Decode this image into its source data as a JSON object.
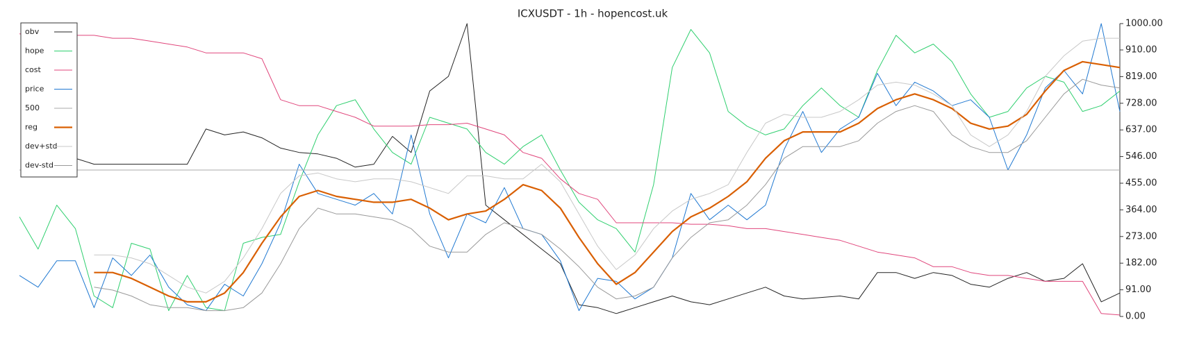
{
  "chart_data": {
    "type": "line",
    "title": "ICXUSDT - 1h - hopencost.uk",
    "ylim": [
      0,
      1000
    ],
    "yticks": [
      {
        "value": 0,
        "label": "0.00"
      },
      {
        "value": 91,
        "label": "91.00"
      },
      {
        "value": 182,
        "label": "182.00"
      },
      {
        "value": 273,
        "label": "273.00"
      },
      {
        "value": 364,
        "label": "364.00"
      },
      {
        "value": 455,
        "label": "455.00"
      },
      {
        "value": 546,
        "label": "546.00"
      },
      {
        "value": 637,
        "label": "637.00"
      },
      {
        "value": 728,
        "label": "728.00"
      },
      {
        "value": 819,
        "label": "819.00"
      },
      {
        "value": 910,
        "label": "910.00"
      },
      {
        "value": 1000,
        "label": "1000.00"
      }
    ],
    "legend": "upper left",
    "series": [
      {
        "name": "obv",
        "color": "#222222",
        "width": 1,
        "values": [
          null,
          null,
          null,
          540,
          520,
          520,
          520,
          520,
          520,
          520,
          640,
          620,
          630,
          610,
          575,
          560,
          555,
          540,
          510,
          520,
          615,
          560,
          770,
          820,
          1000,
          380,
          330,
          280,
          230,
          180,
          40,
          30,
          10,
          30,
          50,
          70,
          50,
          40,
          60,
          80,
          100,
          70,
          60,
          65,
          70,
          60,
          150,
          150,
          130,
          150,
          140,
          110,
          100,
          130,
          150,
          120,
          130,
          180,
          50,
          80
        ]
      },
      {
        "name": "hope",
        "color": "#2ecf6e",
        "width": 1,
        "values": [
          340,
          230,
          380,
          300,
          70,
          30,
          250,
          230,
          20,
          140,
          30,
          20,
          250,
          270,
          280,
          460,
          620,
          720,
          740,
          640,
          560,
          520,
          680,
          660,
          640,
          560,
          520,
          580,
          620,
          500,
          390,
          330,
          300,
          220,
          450,
          850,
          980,
          900,
          700,
          650,
          620,
          640,
          720,
          780,
          720,
          680,
          840,
          960,
          900,
          930,
          870,
          760,
          680,
          700,
          780,
          820,
          800,
          700,
          720,
          770
        ]
      },
      {
        "name": "cost",
        "color": "#e0457b",
        "width": 1,
        "values": [
          965,
          960,
          960,
          960,
          960,
          950,
          950,
          940,
          930,
          920,
          900,
          900,
          900,
          880,
          740,
          720,
          720,
          700,
          680,
          650,
          650,
          650,
          655,
          655,
          660,
          640,
          620,
          560,
          540,
          470,
          420,
          400,
          320,
          320,
          320,
          320,
          315,
          315,
          310,
          300,
          300,
          290,
          280,
          270,
          260,
          240,
          220,
          210,
          200,
          170,
          170,
          150,
          140,
          140,
          130,
          120,
          120,
          120,
          10,
          5
        ]
      },
      {
        "name": "price",
        "color": "#1f78d1",
        "width": 1,
        "values": [
          140,
          100,
          190,
          190,
          30,
          200,
          140,
          210,
          100,
          40,
          20,
          110,
          70,
          180,
          320,
          520,
          420,
          400,
          380,
          420,
          350,
          620,
          350,
          200,
          350,
          320,
          440,
          300,
          280,
          190,
          20,
          130,
          120,
          60,
          100,
          200,
          420,
          330,
          380,
          330,
          380,
          570,
          700,
          560,
          640,
          680,
          830,
          720,
          800,
          770,
          720,
          740,
          680,
          500,
          620,
          780,
          840,
          760,
          1000,
          700
        ]
      },
      {
        "name": "500",
        "color": "#aaaaaa",
        "width": 1,
        "values": [
          500,
          500,
          500,
          500,
          500,
          500,
          500,
          500,
          500,
          500,
          500,
          500,
          500,
          500,
          500,
          500,
          500,
          500,
          500,
          500,
          500,
          500,
          500,
          500,
          500,
          500,
          500,
          500,
          500,
          500,
          500,
          500,
          500,
          500,
          500,
          500,
          500,
          500,
          500,
          500,
          500,
          500,
          500,
          500,
          500,
          500,
          500,
          500,
          500,
          500,
          500,
          500,
          500,
          500,
          500,
          500,
          500,
          500,
          500,
          500
        ]
      },
      {
        "name": "reg",
        "color": "#d95f02",
        "width": 2.2,
        "values": [
          null,
          null,
          null,
          null,
          150,
          150,
          130,
          100,
          70,
          50,
          50,
          80,
          150,
          250,
          340,
          410,
          430,
          410,
          400,
          390,
          390,
          400,
          370,
          330,
          350,
          360,
          400,
          450,
          430,
          370,
          270,
          180,
          110,
          150,
          220,
          290,
          340,
          370,
          410,
          460,
          540,
          600,
          630,
          630,
          630,
          660,
          710,
          740,
          760,
          740,
          710,
          660,
          640,
          650,
          690,
          770,
          840,
          870,
          860,
          850
        ]
      },
      {
        "name": "dev+std",
        "color": "#c8c8c8",
        "width": 1,
        "values": [
          null,
          null,
          null,
          null,
          210,
          210,
          200,
          180,
          140,
          100,
          80,
          120,
          200,
          300,
          420,
          480,
          490,
          470,
          460,
          470,
          470,
          460,
          440,
          420,
          480,
          480,
          470,
          470,
          520,
          460,
          350,
          240,
          160,
          210,
          300,
          360,
          400,
          420,
          450,
          560,
          660,
          690,
          680,
          680,
          700,
          740,
          790,
          800,
          790,
          760,
          720,
          620,
          580,
          620,
          700,
          820,
          890,
          940,
          950,
          950
        ]
      },
      {
        "name": "dev-std",
        "color": "#999999",
        "width": 1,
        "values": [
          null,
          null,
          null,
          null,
          100,
          90,
          70,
          40,
          30,
          30,
          20,
          20,
          30,
          80,
          180,
          300,
          370,
          350,
          350,
          340,
          330,
          300,
          240,
          220,
          220,
          280,
          320,
          300,
          280,
          230,
          170,
          100,
          60,
          70,
          100,
          200,
          270,
          320,
          330,
          380,
          450,
          540,
          580,
          580,
          580,
          600,
          660,
          700,
          720,
          700,
          620,
          580,
          560,
          560,
          600,
          680,
          760,
          810,
          790,
          780
        ]
      }
    ]
  }
}
